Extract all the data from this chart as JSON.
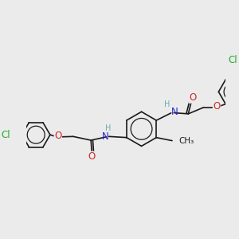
{
  "background_color": "#ebebeb",
  "bond_color": "#1a1a1a",
  "bond_width": 1.2,
  "atom_colors": {
    "H": "#6aacac",
    "N": "#2828cc",
    "O": "#cc2828",
    "Cl": "#28aa28"
  },
  "font_size": 8.5,
  "font_size_h": 7.0,
  "font_size_cl": 8.5,
  "font_size_methyl": 7.5
}
